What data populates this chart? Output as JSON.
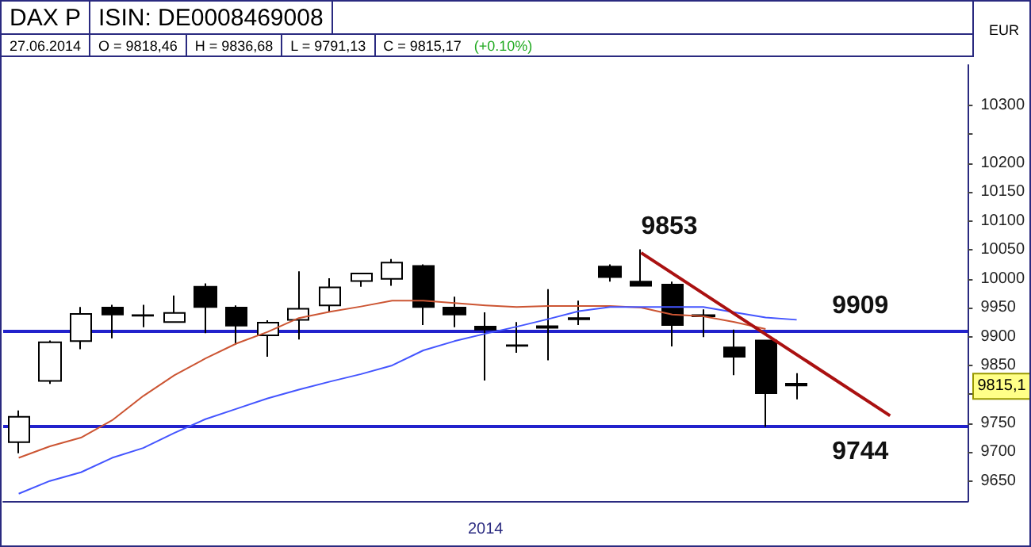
{
  "chart_data": {
    "type": "candlestick",
    "title": "DAX P",
    "subtitle": "ISIN: DE0008469008",
    "xlabel": "2014",
    "ylabel": "EUR",
    "categories": [
      null,
      null,
      null,
      null,
      null,
      null,
      null,
      null,
      null,
      null,
      null,
      null,
      null,
      null,
      null,
      null,
      null,
      null,
      null,
      null,
      null,
      null,
      null,
      null,
      null,
      null,
      null,
      null,
      null,
      null,
      null
    ],
    "ohlc": [
      [
        9717,
        9772,
        9698,
        9761
      ],
      [
        9823,
        9893,
        9818,
        9890
      ],
      [
        9892,
        9951,
        9878,
        9939
      ],
      [
        9950,
        9955,
        9897,
        9938
      ],
      [
        9936,
        9955,
        9916,
        9937
      ],
      [
        9925,
        9971,
        9924,
        9941
      ],
      [
        9986,
        9992,
        9906,
        9951
      ],
      [
        9950,
        9954,
        9886,
        9919
      ],
      [
        9902,
        9928,
        9865,
        9924
      ],
      [
        9929,
        10013,
        9895,
        9948
      ],
      [
        9954,
        10001,
        9942,
        9985
      ],
      [
        9996,
        10010,
        9986,
        10009
      ],
      [
        10000,
        10034,
        9988,
        10028
      ],
      [
        10022,
        10025,
        9920,
        9951
      ],
      [
        9950,
        9969,
        9916,
        9938
      ],
      [
        9917,
        9942,
        9824,
        9912
      ],
      [
        9884,
        9925,
        9872,
        9885
      ],
      [
        9918,
        9982,
        9859,
        9915
      ],
      [
        9930,
        9962,
        9920,
        9932
      ],
      [
        10021,
        10025,
        9995,
        10003
      ],
      [
        9995,
        10051,
        9988,
        9988
      ],
      [
        9990,
        9995,
        9883,
        9920
      ],
      [
        9937,
        9947,
        9899,
        9935
      ],
      [
        9881,
        9912,
        9833,
        9865
      ],
      [
        9893,
        9894,
        9744,
        9802
      ],
      [
        9818.46,
        9836.68,
        9791.13,
        9815.17
      ],
      null,
      null,
      null,
      null,
      null
    ],
    "colors": [
      "#ffffff",
      "#ffffff",
      "#ffffff",
      "#000000",
      "#ffffff",
      "#ffffff",
      "#000000",
      "#000000",
      "#ffffff",
      "#ffffff",
      "#ffffff",
      "#ffffff",
      "#ffffff",
      "#000000",
      "#000000",
      "#000000",
      "#ffffff",
      "#000000",
      "#ffffff",
      "#000000",
      "#000000",
      "#000000",
      "#000000",
      "#000000",
      "#000000",
      "#000000",
      null,
      null,
      null,
      null,
      null
    ],
    "series": [
      {
        "type": "line",
        "color": "#cc5533",
        "values": [
          9690,
          9710,
          9725,
          9755,
          9797,
          9833,
          9862,
          9888,
          9908,
          9932,
          9943,
          9952,
          9962,
          9962,
          9958,
          9954,
          9951,
          9953,
          9953,
          9953,
          9950,
          9938,
          9935,
          9925,
          9913,
          null,
          null,
          null,
          null,
          null,
          null
        ]
      },
      {
        "type": "line",
        "color": "#4455ff",
        "values": [
          9628,
          9650,
          9665,
          9690,
          9707,
          9733,
          9757,
          9775,
          9793,
          9808,
          9822,
          9835,
          9850,
          9876,
          9892,
          9905,
          9917,
          9930,
          9944,
          9951,
          9951,
          9951,
          9951,
          9942,
          9933,
          9929,
          null,
          null,
          null,
          null,
          null
        ]
      },
      {
        "type": "line",
        "color": "#aa1111",
        "values": [
          null,
          null,
          null,
          null,
          null,
          null,
          null,
          null,
          null,
          null,
          null,
          null,
          null,
          null,
          null,
          null,
          null,
          null,
          null,
          null,
          10045,
          null,
          null,
          null,
          null,
          null,
          null,
          null,
          9763,
          null,
          null
        ]
      }
    ],
    "ylim": [
      9615,
      10370
    ],
    "yticks": [
      9650,
      9700,
      9750,
      {
        "value": 9800,
        "label": null
      },
      9850,
      9900,
      9950,
      10000,
      10050,
      10100,
      10150,
      10200,
      {
        "value": 10250,
        "label": null
      },
      10300
    ],
    "ref_lines": [
      {
        "axis": "y",
        "value": 9909,
        "label": "9909",
        "color": "#2222cc"
      },
      {
        "axis": "y",
        "value": 9744,
        "label": "9744",
        "color": "#2222cc"
      }
    ],
    "annotations": [
      "27.06.2014",
      "O = 9818,46",
      "H = 9836,68",
      "L = 9791,13",
      "C = 9815,17",
      "(+0.10%)",
      "9853",
      "9815,1"
    ],
    "grid": false
  }
}
